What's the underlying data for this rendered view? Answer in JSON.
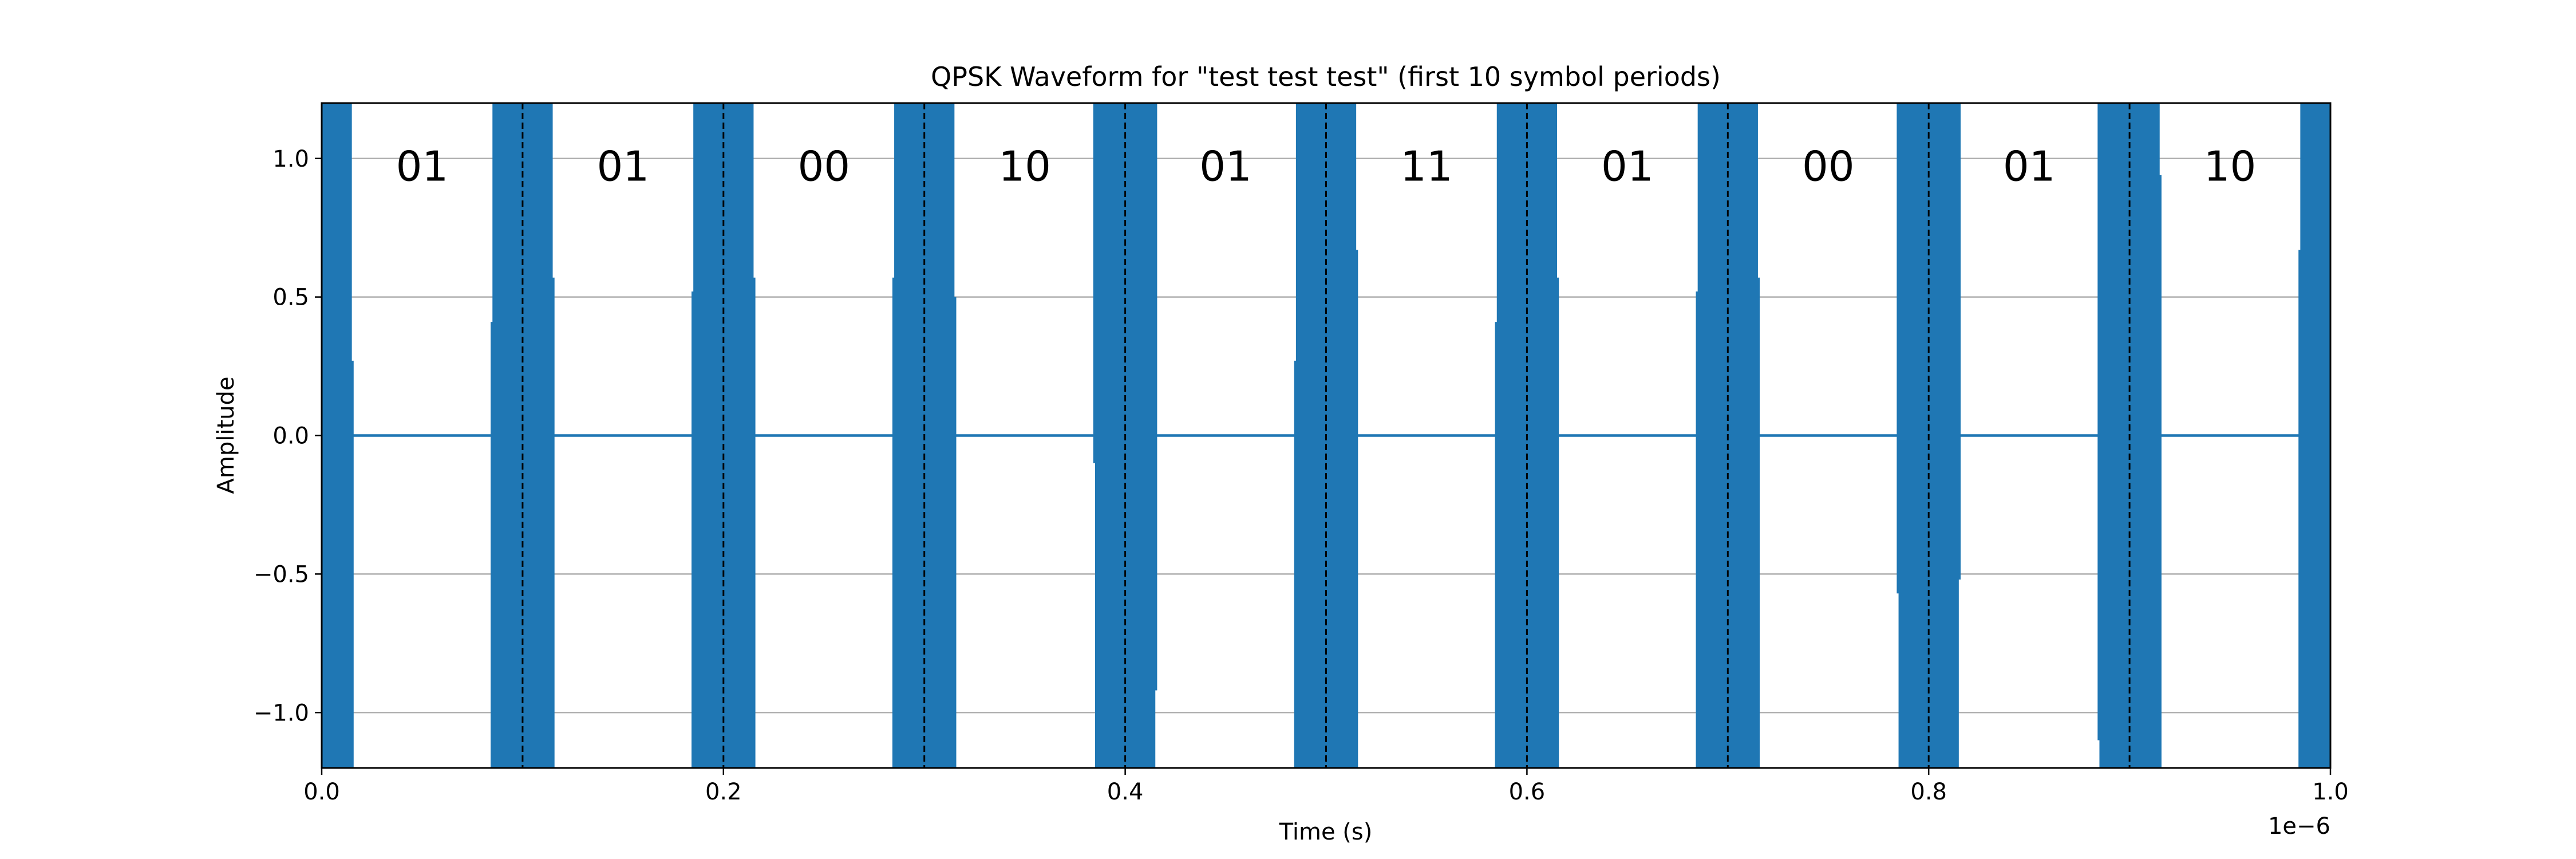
{
  "chart_data": {
    "type": "line",
    "title": "QPSK Waveform for \"test test test\" (first 10 symbol periods)",
    "xlabel": "Time (s)",
    "ylabel": "Amplitude",
    "xlim": [
      0.0,
      1.0
    ],
    "ylim": [
      -1.2,
      1.2
    ],
    "x_offset_label": "1e−6",
    "grid": "y-only",
    "line_color": "#1f77b4",
    "boundary_color": "#000000",
    "x_ticks": [
      {
        "value": 0.0,
        "label": "0.0"
      },
      {
        "value": 0.2,
        "label": "0.2"
      },
      {
        "value": 0.4,
        "label": "0.4"
      },
      {
        "value": 0.6,
        "label": "0.6"
      },
      {
        "value": 0.8,
        "label": "0.8"
      },
      {
        "value": 1.0,
        "label": "1.0"
      }
    ],
    "y_ticks": [
      {
        "value": 1.0,
        "label": "1.0"
      },
      {
        "value": 0.5,
        "label": "0.5"
      },
      {
        "value": 0.0,
        "label": "0.0"
      },
      {
        "value": -0.5,
        "label": "−0.5"
      },
      {
        "value": -1.0,
        "label": "−1.0"
      }
    ],
    "symbol_boundaries": [
      0.1,
      0.2,
      0.3,
      0.4,
      0.5,
      0.6,
      0.7,
      0.8,
      0.9
    ],
    "symbols": [
      {
        "x": 0.05,
        "label": "01"
      },
      {
        "x": 0.15,
        "label": "01"
      },
      {
        "x": 0.25,
        "label": "00"
      },
      {
        "x": 0.35,
        "label": "10"
      },
      {
        "x": 0.45,
        "label": "01"
      },
      {
        "x": 0.55,
        "label": "11"
      },
      {
        "x": 0.65,
        "label": "01"
      },
      {
        "x": 0.75,
        "label": "00"
      },
      {
        "x": 0.85,
        "label": "01"
      },
      {
        "x": 0.95,
        "label": "10"
      }
    ],
    "bursts": [
      {
        "center": 0.0,
        "half_width": 0.015,
        "left_max": 1.2,
        "left_min": -1.2,
        "right_max": 0.27,
        "right_min": -1.2
      },
      {
        "center": 0.1,
        "half_width": 0.015,
        "left_max": 0.41,
        "left_min": -1.2,
        "right_max": 0.57,
        "right_min": -1.2
      },
      {
        "center": 0.2,
        "half_width": 0.015,
        "left_max": 0.52,
        "left_min": -1.2,
        "right_max": 0.57,
        "right_min": -1.2
      },
      {
        "center": 0.3,
        "half_width": 0.015,
        "left_max": 0.57,
        "left_min": -1.2,
        "right_max": 0.5,
        "right_min": -1.2
      },
      {
        "center": 0.4,
        "half_width": 0.015,
        "left_max": 1.2,
        "left_min": -0.1,
        "right_max": 1.2,
        "right_min": -0.92
      },
      {
        "center": 0.5,
        "half_width": 0.015,
        "left_max": 0.27,
        "left_min": -1.2,
        "right_max": 0.67,
        "right_min": -1.2
      },
      {
        "center": 0.6,
        "half_width": 0.015,
        "left_max": 0.41,
        "left_min": -1.2,
        "right_max": 0.57,
        "right_min": -1.2
      },
      {
        "center": 0.7,
        "half_width": 0.015,
        "left_max": 0.52,
        "left_min": -1.2,
        "right_max": 0.57,
        "right_min": -1.2
      },
      {
        "center": 0.8,
        "half_width": 0.015,
        "left_max": 1.2,
        "left_min": -0.57,
        "right_max": 1.2,
        "right_min": -0.52
      },
      {
        "center": 0.9,
        "half_width": 0.015,
        "left_max": 1.2,
        "left_min": -1.1,
        "right_max": 0.94,
        "right_min": -1.2
      },
      {
        "center": 1.0,
        "half_width": 0.015,
        "left_max": 0.67,
        "left_min": -1.2,
        "right_max": 1.2,
        "right_min": -1.2
      }
    ]
  }
}
